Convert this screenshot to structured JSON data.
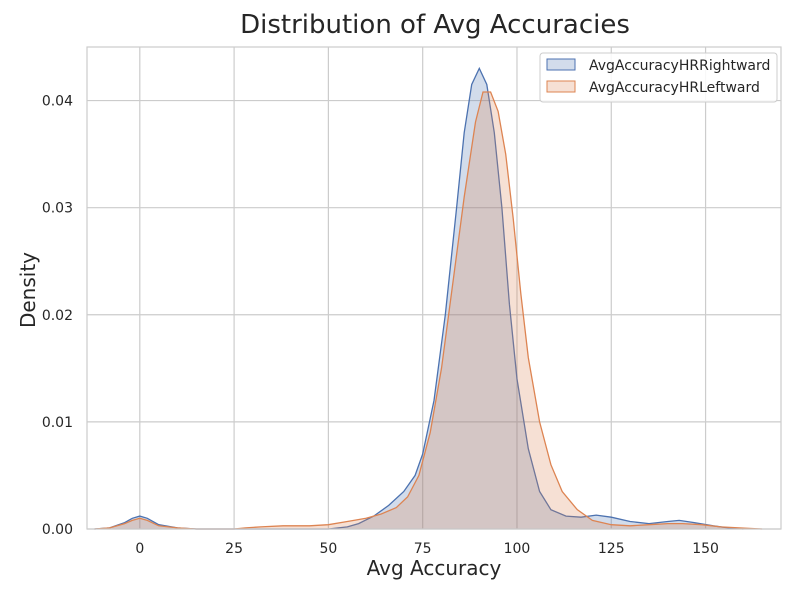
{
  "chart_data": {
    "type": "area",
    "title": "Distribution of Avg Accuracies",
    "xlabel": "Avg Accuracy",
    "ylabel": "Density",
    "xlim": [
      -14,
      170
    ],
    "ylim": [
      0,
      0.045
    ],
    "xticks": [
      0,
      25,
      50,
      75,
      100,
      125,
      150
    ],
    "yticks": [
      0.0,
      0.01,
      0.02,
      0.03,
      0.04
    ],
    "ytick_labels": [
      "0.00",
      "0.01",
      "0.02",
      "0.03",
      "0.04"
    ],
    "grid": true,
    "legend_position": "top-right",
    "series": [
      {
        "name": "AvgAccuracyHRRightward",
        "color": "#4c72b0",
        "points": [
          [
            -12,
            0
          ],
          [
            -8,
            0.0001
          ],
          [
            -4,
            0.0006
          ],
          [
            -2,
            0.001
          ],
          [
            0,
            0.0012
          ],
          [
            2,
            0.001
          ],
          [
            5,
            0.0004
          ],
          [
            10,
            0.0001
          ],
          [
            15,
            0
          ],
          [
            30,
            0
          ],
          [
            45,
            0
          ],
          [
            50,
            0
          ],
          [
            55,
            0.0002
          ],
          [
            58,
            0.0005
          ],
          [
            62,
            0.0012
          ],
          [
            66,
            0.0022
          ],
          [
            70,
            0.0035
          ],
          [
            73,
            0.005
          ],
          [
            75,
            0.007
          ],
          [
            78,
            0.012
          ],
          [
            81,
            0.02
          ],
          [
            84,
            0.03
          ],
          [
            86,
            0.037
          ],
          [
            88,
            0.0415
          ],
          [
            90,
            0.043
          ],
          [
            92,
            0.0415
          ],
          [
            94,
            0.037
          ],
          [
            96,
            0.03
          ],
          [
            98,
            0.021
          ],
          [
            100,
            0.014
          ],
          [
            103,
            0.0075
          ],
          [
            106,
            0.0035
          ],
          [
            109,
            0.0018
          ],
          [
            113,
            0.0012
          ],
          [
            117,
            0.0011
          ],
          [
            121,
            0.0013
          ],
          [
            125,
            0.0011
          ],
          [
            130,
            0.0007
          ],
          [
            135,
            0.0005
          ],
          [
            140,
            0.0007
          ],
          [
            143,
            0.0008
          ],
          [
            147,
            0.0006
          ],
          [
            152,
            0.0003
          ],
          [
            156,
            0.0001
          ],
          [
            160,
            0
          ]
        ]
      },
      {
        "name": "AvgAccuracyHRLeftward",
        "color": "#dd8452",
        "points": [
          [
            -12,
            0
          ],
          [
            -8,
            0.0001
          ],
          [
            -4,
            0.0005
          ],
          [
            -2,
            0.0008
          ],
          [
            0,
            0.001
          ],
          [
            2,
            0.0008
          ],
          [
            5,
            0.0003
          ],
          [
            10,
            0.0001
          ],
          [
            15,
            0
          ],
          [
            25,
            0
          ],
          [
            28,
            0.0001
          ],
          [
            32,
            0.0002
          ],
          [
            38,
            0.0003
          ],
          [
            45,
            0.0003
          ],
          [
            50,
            0.0004
          ],
          [
            55,
            0.0007
          ],
          [
            60,
            0.001
          ],
          [
            64,
            0.0014
          ],
          [
            68,
            0.002
          ],
          [
            71,
            0.003
          ],
          [
            74,
            0.005
          ],
          [
            77,
            0.009
          ],
          [
            80,
            0.015
          ],
          [
            83,
            0.023
          ],
          [
            86,
            0.031
          ],
          [
            89,
            0.038
          ],
          [
            91,
            0.0408
          ],
          [
            93,
            0.0408
          ],
          [
            95,
            0.039
          ],
          [
            97,
            0.035
          ],
          [
            99,
            0.029
          ],
          [
            101,
            0.022
          ],
          [
            103,
            0.016
          ],
          [
            106,
            0.01
          ],
          [
            109,
            0.006
          ],
          [
            112,
            0.0035
          ],
          [
            116,
            0.0018
          ],
          [
            120,
            0.0008
          ],
          [
            125,
            0.0004
          ],
          [
            130,
            0.0003
          ],
          [
            135,
            0.0004
          ],
          [
            140,
            0.0005
          ],
          [
            144,
            0.0005
          ],
          [
            149,
            0.0004
          ],
          [
            154,
            0.0002
          ],
          [
            159,
            0.0001
          ],
          [
            165,
            0
          ]
        ]
      }
    ]
  }
}
